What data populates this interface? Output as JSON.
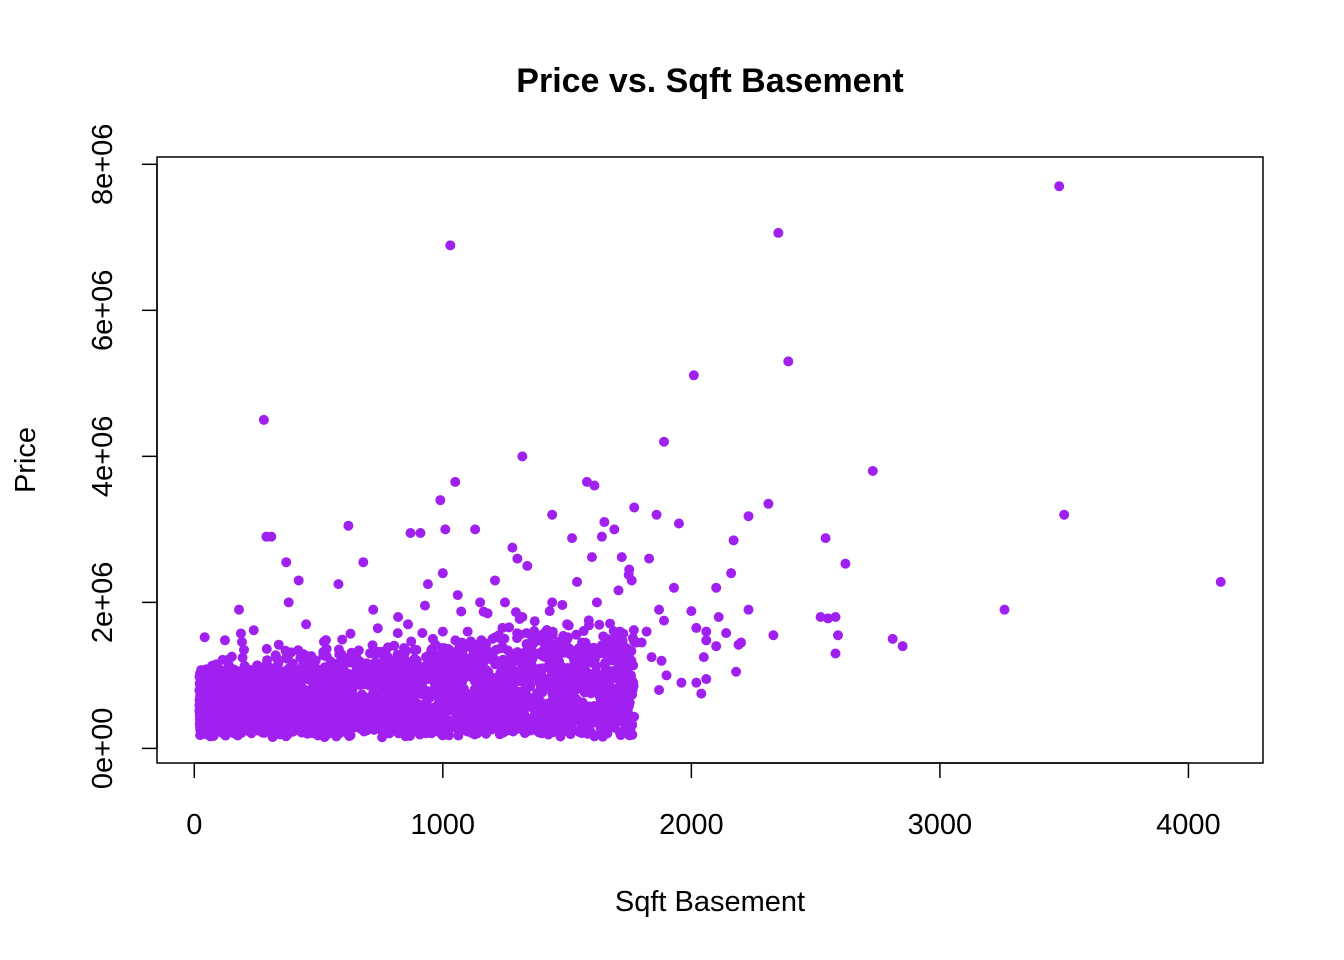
{
  "chart_data": {
    "type": "scatter",
    "title": "Price vs. Sqft Basement",
    "xlabel": "Sqft Basement",
    "ylabel": "Price",
    "xlim": [
      -150,
      4300
    ],
    "ylim": [
      -200000,
      8100000
    ],
    "x_ticks": [
      0,
      1000,
      2000,
      3000,
      4000
    ],
    "x_tick_labels": [
      "0",
      "1000",
      "2000",
      "3000",
      "4000"
    ],
    "y_ticks": [
      0,
      2000000,
      4000000,
      6000000,
      8000000
    ],
    "y_tick_labels": [
      "0e+00",
      "2e+06",
      "4e+06",
      "6e+06",
      "8e+06"
    ],
    "grid": false,
    "point_color": "#a020f0",
    "series": [
      {
        "x": [
          3480,
          2350,
          1030,
          2390,
          2010,
          280,
          1890,
          1320,
          2730,
          1050,
          1580,
          1610,
          3500,
          2310,
          990,
          1650,
          1770,
          1860,
          1440,
          620,
          1010,
          1950,
          910,
          870,
          1130,
          1690,
          2230,
          310,
          290,
          1640,
          2540,
          1520,
          1280,
          2170,
          680,
          370,
          1720,
          2620,
          1600,
          1830,
          1300,
          420,
          1750,
          1340,
          1000,
          1760,
          2160,
          1540,
          580,
          1210,
          2100,
          940,
          1930,
          1060,
          1150,
          1440,
          2230,
          4130,
          1870,
          1620,
          1250,
          180,
          3260,
          1430,
          2550,
          2000,
          720,
          380,
          1180,
          1320,
          820,
          2110,
          2520,
          2810,
          2580,
          2850,
          2190,
          2330,
          2020,
          1000,
          2060,
          1890,
          2590,
          860,
          1500,
          450,
          1240,
          2140,
          2580,
          960,
          1660,
          1210,
          340,
          2060,
          1700,
          1800,
          1100,
          1410,
          1820,
          1680,
          200,
          1200,
          1560,
          2050,
          1780,
          2200,
          1880,
          2100,
          1840,
          1700,
          2180,
          1900,
          2060,
          2020,
          1960,
          1870,
          2040,
          1650
        ],
        "y": [
          7700000,
          7060000,
          6890000,
          5300000,
          5110000,
          4500000,
          4200000,
          4000000,
          3800000,
          3650000,
          3650000,
          3600000,
          3200000,
          3350000,
          3400000,
          3100000,
          3300000,
          3200000,
          3200000,
          3050000,
          3000000,
          3080000,
          2950000,
          2950000,
          3000000,
          3000000,
          3180000,
          2900000,
          2900000,
          2900000,
          2880000,
          2880000,
          2750000,
          2850000,
          2550000,
          2550000,
          2620000,
          2530000,
          2620000,
          2600000,
          2600000,
          2300000,
          2450000,
          2500000,
          2400000,
          2300000,
          2400000,
          2280000,
          2250000,
          2300000,
          2200000,
          2250000,
          2200000,
          2100000,
          2000000,
          2000000,
          1900000,
          2280000,
          1900000,
          2000000,
          2000000,
          1900000,
          1900000,
          1880000,
          1780000,
          1880000,
          1900000,
          2000000,
          1850000,
          1800000,
          1800000,
          1800000,
          1800000,
          1500000,
          1800000,
          1400000,
          1420000,
          1550000,
          1650000,
          1600000,
          1600000,
          1750000,
          1550000,
          1700000,
          1700000,
          1700000,
          1650000,
          1580000,
          1300000,
          1500000,
          1500000,
          1520000,
          1420000,
          1480000,
          1500000,
          1450000,
          1600000,
          1580000,
          1600000,
          1400000,
          1350000,
          1500000,
          1450000,
          1250000,
          1450000,
          1450000,
          1200000,
          1400000,
          1250000,
          1300000,
          1050000,
          1000000,
          950000,
          900000,
          900000,
          800000,
          750000,
          700000
        ]
      }
    ]
  }
}
